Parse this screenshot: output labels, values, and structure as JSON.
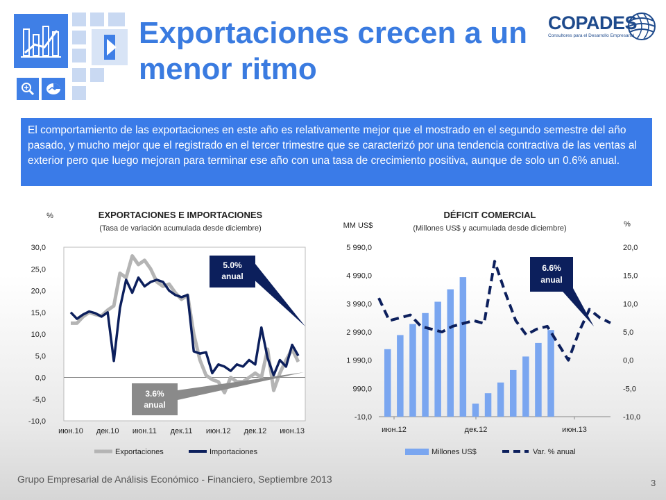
{
  "header": {
    "title": "Exportaciones crecen a un menor ritmo",
    "brand_name": "COPADES",
    "brand_tagline": "Consultores para el Desarrollo Empresarial",
    "icons": [
      "bar-chart-icon",
      "play-icon",
      "zoom-icon",
      "pie-chart-icon"
    ],
    "accent_color": "#3a7be8"
  },
  "intro_text": "El comportamiento de las exportaciones en este año es relativamente mejor que el mostrado en el segundo semestre del año pasado, y mucho mejor que el registrado en el tercer trimestre que se caracterizó por una tendencia contractiva de las ventas al exterior pero que luego mejoran para terminar ese año con una tasa de crecimiento positiva, aunque de solo un 0.6% anual.",
  "footer": {
    "text": "Grupo Empresarial de Análisis Económico - Financiero, Septiembre 2013",
    "page": "3"
  },
  "chart_data": [
    {
      "type": "line",
      "title": "EXPORTACIONES E IMPORTACIONES",
      "subtitle": "(Tasa de variación acumulada desde diciembre)",
      "ylabel": "%",
      "ylim": [
        -10,
        30
      ],
      "yticks": [
        "-10,0",
        "-5,0",
        "0,0",
        "5,0",
        "10,0",
        "15,0",
        "20,0",
        "25,0",
        "30,0"
      ],
      "xticks": [
        "июн.10",
        "дек.10",
        "июн.11",
        "дек.11",
        "июн.12",
        "дек.12",
        "июн.13"
      ],
      "legend_position": "bottom",
      "series": [
        {
          "name": "Exportaciones",
          "color": "#b4b4b4",
          "values": [
            12.5,
            12.5,
            14.0,
            15.0,
            14.5,
            14.2,
            15.5,
            16.5,
            24.0,
            23.0,
            28.0,
            26.0,
            27.0,
            25.0,
            22.0,
            21.0,
            21.5,
            19.5,
            18.0,
            19.0,
            10.0,
            4.0,
            0.5,
            -0.5,
            -1.0,
            -3.5,
            0.0,
            -1.0,
            -1.0,
            0.0,
            1.0,
            0.0,
            6.5,
            -3.0,
            1.0,
            4.0,
            6.5,
            3.6
          ]
        },
        {
          "name": "Importaciones",
          "color": "#0c1f5c",
          "values": [
            15.0,
            13.5,
            14.5,
            15.2,
            14.8,
            14.0,
            15.0,
            3.8,
            16.0,
            22.5,
            19.5,
            23.0,
            21.0,
            22.0,
            22.5,
            22.0,
            20.0,
            19.0,
            18.5,
            19.0,
            6.0,
            5.5,
            5.8,
            1.0,
            3.0,
            2.5,
            1.5,
            3.0,
            2.5,
            4.0,
            3.0,
            11.5,
            4.5,
            0.5,
            4.0,
            2.5,
            7.5,
            5.0
          ]
        }
      ],
      "annotations": [
        {
          "text": "5.0%",
          "text2": "anual",
          "color": "#0c1f5c"
        },
        {
          "text": "3.6%",
          "text2": "anual",
          "color": "#8a8a8a"
        }
      ]
    },
    {
      "type": "bar",
      "title": "DÉFICIT COMERCIAL",
      "subtitle": "(Millones US$ y  acumulada desde diciembre)",
      "ylabel_left": "MM US$",
      "ylabel_right": "%",
      "ylim_left": [
        -10,
        5990
      ],
      "ylim_right": [
        -10,
        20
      ],
      "yticks_left": [
        "-10,0",
        "990,0",
        "1 990,0",
        "2 990,0",
        "3 990,0",
        "4 990,0",
        "5 990,0"
      ],
      "yticks_right": [
        "-10,0",
        "-5,0",
        "0,0",
        "5,0",
        "10,0",
        "15,0",
        "20,0"
      ],
      "xticks": [
        "июн.12",
        "дек.12",
        "июн.13"
      ],
      "legend_position": "bottom",
      "series": [
        {
          "name": "Millones US$",
          "type": "bar",
          "color": "#7aa6f0",
          "values": [
            2380,
            2880,
            3270,
            3660,
            4060,
            4500,
            4930,
            450,
            820,
            1200,
            1640,
            2120,
            2600,
            3060
          ]
        },
        {
          "name": "Var. % anual",
          "type": "line-dashed",
          "color": "#0c1f5c",
          "values": [
            11.0,
            7.0,
            7.5,
            8.0,
            6.0,
            5.5,
            5.0,
            6.0,
            6.5,
            7.0,
            6.5,
            17.5,
            12.0,
            7.0,
            4.5,
            5.5,
            6.0,
            3.0,
            0.0,
            5.0,
            9.0,
            7.5,
            6.6
          ]
        }
      ],
      "annotations": [
        {
          "text": "6.6%",
          "text2": "anual",
          "color": "#0c1f5c"
        }
      ]
    }
  ]
}
